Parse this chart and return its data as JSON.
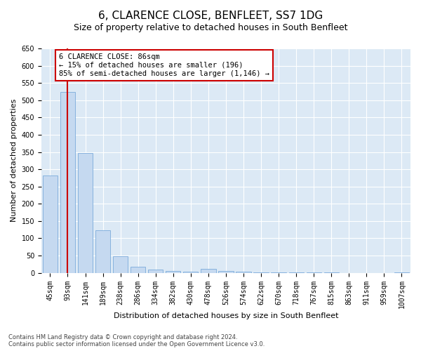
{
  "title": "6, CLARENCE CLOSE, BENFLEET, SS7 1DG",
  "subtitle": "Size of property relative to detached houses in South Benfleet",
  "xlabel": "Distribution of detached houses by size in South Benfleet",
  "ylabel": "Number of detached properties",
  "categories": [
    "45sqm",
    "93sqm",
    "141sqm",
    "189sqm",
    "238sqm",
    "286sqm",
    "334sqm",
    "382sqm",
    "430sqm",
    "478sqm",
    "526sqm",
    "574sqm",
    "622sqm",
    "670sqm",
    "718sqm",
    "767sqm",
    "815sqm",
    "863sqm",
    "911sqm",
    "959sqm",
    "1007sqm"
  ],
  "values": [
    282,
    524,
    346,
    123,
    48,
    18,
    10,
    5,
    3,
    11,
    5,
    3,
    2,
    2,
    1,
    1,
    1,
    0,
    0,
    0,
    2
  ],
  "bar_color": "#c5d9f0",
  "bar_edge_color": "#7aabdb",
  "vline_x": 1,
  "vline_color": "#cc0000",
  "annotation_text": "6 CLARENCE CLOSE: 86sqm\n← 15% of detached houses are smaller (196)\n85% of semi-detached houses are larger (1,146) →",
  "annotation_box_color": "#ffffff",
  "annotation_box_edge_color": "#cc0000",
  "ylim": [
    0,
    650
  ],
  "yticks": [
    0,
    50,
    100,
    150,
    200,
    250,
    300,
    350,
    400,
    450,
    500,
    550,
    600,
    650
  ],
  "footer_line1": "Contains HM Land Registry data © Crown copyright and database right 2024.",
  "footer_line2": "Contains public sector information licensed under the Open Government Licence v3.0.",
  "fig_background_color": "#ffffff",
  "plot_bg_color": "#dce9f5",
  "title_fontsize": 11,
  "subtitle_fontsize": 9,
  "tick_fontsize": 7,
  "ylabel_fontsize": 8,
  "xlabel_fontsize": 8,
  "footer_fontsize": 6,
  "annotation_fontsize": 7.5
}
